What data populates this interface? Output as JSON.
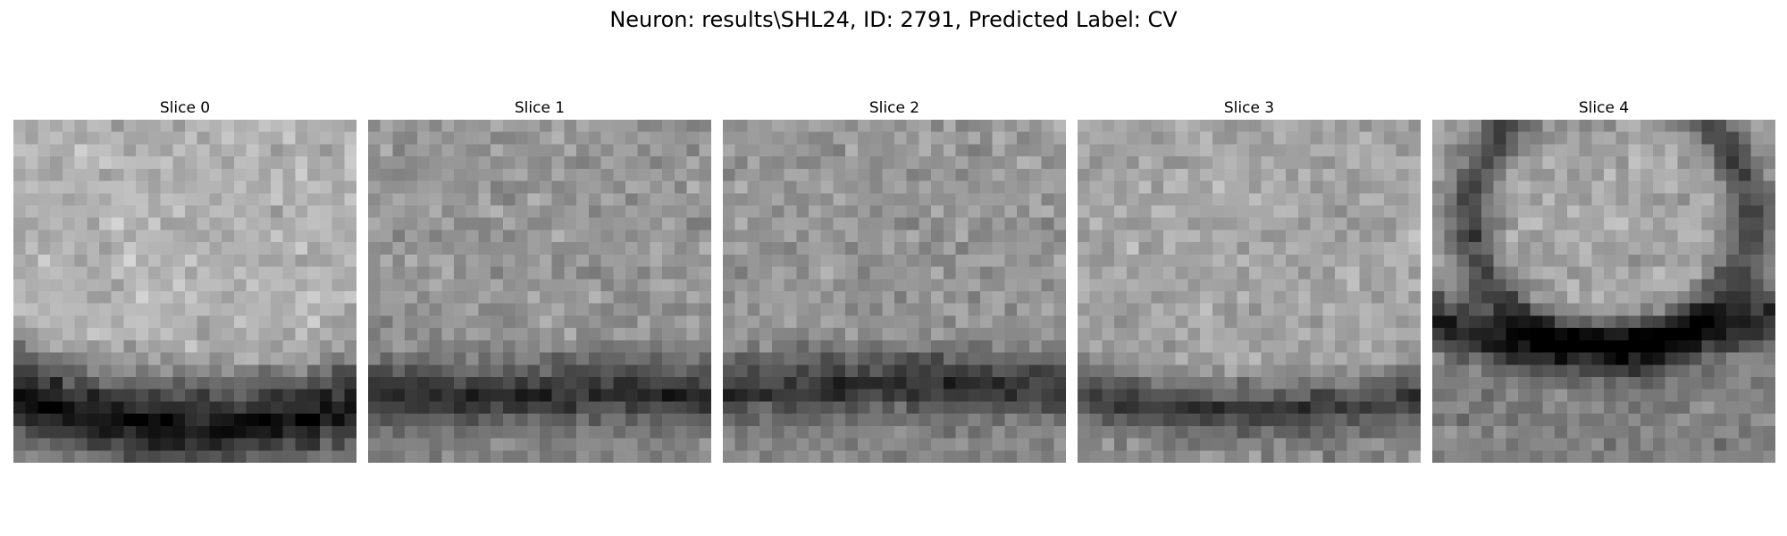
{
  "figure": {
    "title": "Neuron: results\\SHL24, ID: 2791, Predicted Label: CV",
    "colormap": "gray"
  },
  "slices": [
    {
      "label": "Slice 0"
    },
    {
      "label": "Slice 1"
    },
    {
      "label": "Slice 2"
    },
    {
      "label": "Slice 3"
    },
    {
      "label": "Slice 4"
    }
  ]
}
